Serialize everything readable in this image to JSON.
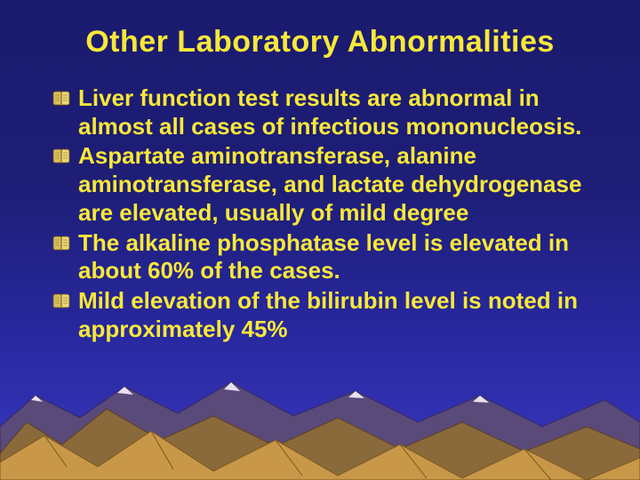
{
  "colors": {
    "title": "#f8e838",
    "body": "#f8e838",
    "bg_top": "#1a1a6e",
    "bg_bottom": "#3838c0",
    "mountain_back": "#5a4a7a",
    "mountain_back_stroke": "#3a2a5a",
    "mountain_mid": "#8a6a3a",
    "mountain_mid_stroke": "#5a4020",
    "mountain_front": "#c89848",
    "mountain_front_stroke": "#7a5820",
    "mountain_snow": "#e8e0f0"
  },
  "title": "Other Laboratory Abnormalities",
  "bullets": [
    "Liver function test results are abnormal in almost all cases of infectious mononucleosis.",
    "Aspartate aminotransferase, alanine aminotransferase, and lactate dehydrogenase are elevated, usually of mild degree",
    "The alkaline phosphatase level is elevated in about 60% of the cases.",
    " Mild elevation of the bilirubin level is noted in approximately 45%"
  ],
  "title_fontsize": 34,
  "body_fontsize": 26
}
